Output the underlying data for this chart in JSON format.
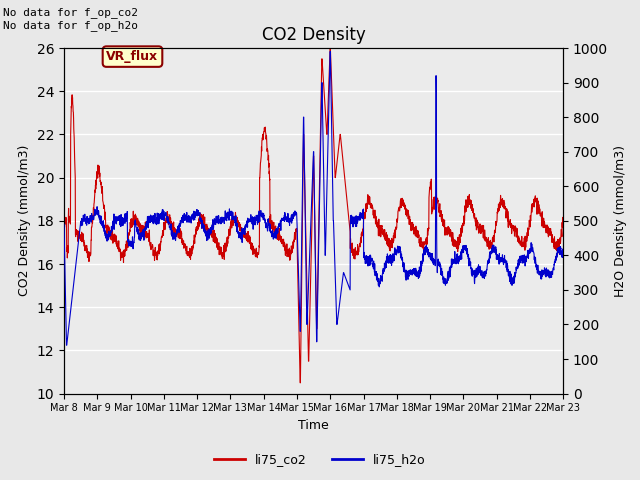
{
  "title": "CO2 Density",
  "xlabel": "Time",
  "ylabel_left": "CO2 Density (mmol/m3)",
  "ylabel_right": "H2O Density (mmol/m3)",
  "top_left_text": "No data for f_op_co2\nNo data for f_op_h2o",
  "legend_box_label": "VR_flux",
  "legend_entries": [
    "li75_co2",
    "li75_h2o"
  ],
  "legend_colors": [
    "#cc0000",
    "#0000cc"
  ],
  "ylim_left": [
    10,
    26
  ],
  "ylim_right": [
    0,
    1000
  ],
  "yticks_left": [
    10,
    12,
    14,
    16,
    18,
    20,
    22,
    24,
    26
  ],
  "yticks_right": [
    0,
    100,
    200,
    300,
    400,
    500,
    600,
    700,
    800,
    900,
    1000
  ],
  "xtick_labels": [
    "Mar 8",
    "Mar 9",
    "Mar 10",
    "Mar 11",
    "Mar 12",
    "Mar 13",
    "Mar 14",
    "Mar 15",
    "Mar 16",
    "Mar 17",
    "Mar 18",
    "Mar 19",
    "Mar 20",
    "Mar 21",
    "Mar 22",
    "Mar 23"
  ],
  "co2_color": "#cc0000",
  "h2o_color": "#0000cc",
  "fig_facecolor": "#e8e8e8",
  "axes_facecolor": "#ebebeb",
  "grid_color": "#ffffff",
  "linewidth": 0.8,
  "n_points": 2400
}
